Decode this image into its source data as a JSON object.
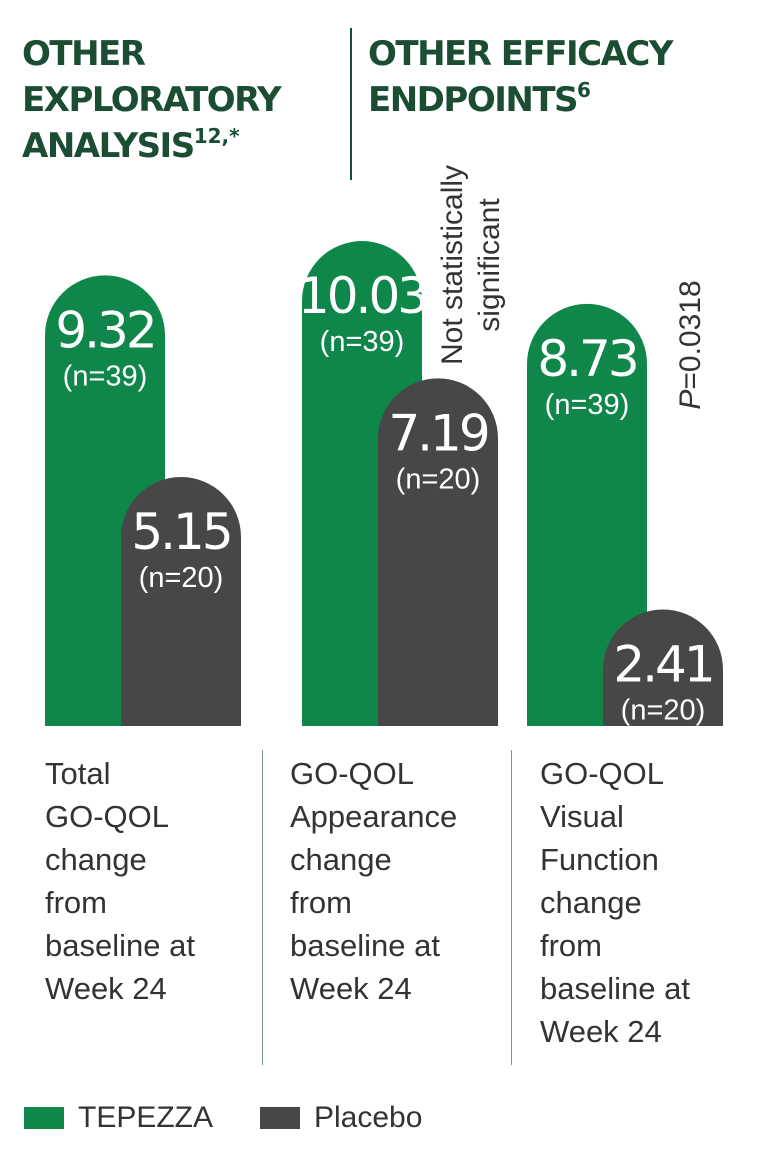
{
  "headings": {
    "left": {
      "text": "OTHER EXPLORATORY ANALYSIS",
      "sup": "12,*"
    },
    "right": {
      "text": "OTHER EFFICACY ENDPOINTS",
      "sup": "6"
    }
  },
  "colors": {
    "tepezza": "#10874a",
    "placebo": "#474747",
    "heading": "#1b4d33"
  },
  "chart_data": {
    "type": "bar",
    "categories": [
      "Total GO-QOL change from baseline at Week 24",
      "GO-QOL Appearance change from baseline at Week 24",
      "GO-QOL Visual Function change from baseline at Week 24"
    ],
    "series": [
      {
        "name": "TEPEZZA",
        "values": [
          9.32,
          10.03,
          8.73
        ],
        "n_labels": [
          "(n=39)",
          "(n=39)",
          "(n=39)"
        ]
      },
      {
        "name": "Placebo",
        "values": [
          5.15,
          7.19,
          2.41
        ],
        "n_labels": [
          "(n=20)",
          "(n=20)",
          "(n=20)"
        ]
      }
    ],
    "annotations": [
      {
        "category": 1,
        "text": "Not statistically significant"
      },
      {
        "category": 2,
        "text_prefix": "P",
        "text": "=0.0318"
      }
    ],
    "value_labels": [
      [
        "9.32",
        "5.15"
      ],
      [
        "10.03",
        "7.19"
      ],
      [
        "8.73",
        "2.41"
      ]
    ]
  },
  "category_labels": [
    [
      "Total",
      "GO-QOL",
      "change",
      "from",
      "baseline at",
      "Week 24"
    ],
    [
      "GO-QOL",
      "Appearance",
      "change",
      "from",
      "baseline at",
      "Week 24"
    ],
    [
      "GO-QOL",
      "Visual",
      "Function",
      "change",
      "from",
      "baseline at",
      "Week 24"
    ]
  ],
  "legend": [
    {
      "label": "TEPEZZA"
    },
    {
      "label": "Placebo"
    }
  ]
}
